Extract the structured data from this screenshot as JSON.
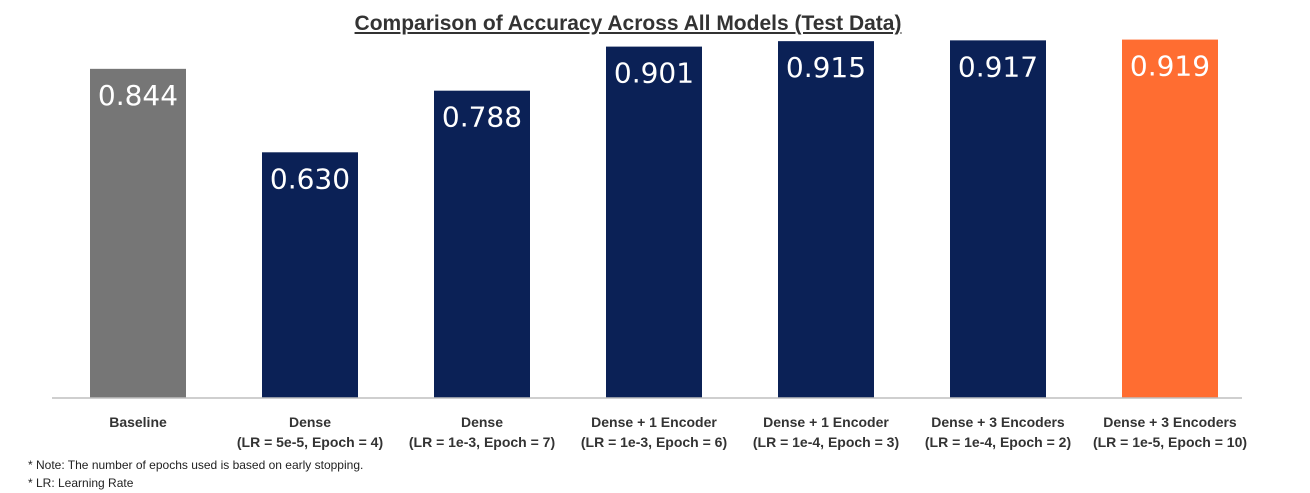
{
  "chart_data": {
    "type": "bar",
    "title": "Comparison of Accuracy Across All Models (Test Data)",
    "xlabel": "",
    "ylabel": "",
    "ylim": [
      0,
      1
    ],
    "grid": false,
    "legend": "none",
    "categories": [
      [
        "Baseline"
      ],
      [
        "Dense",
        "(LR = 5e-5, Epoch = 4)"
      ],
      [
        "Dense",
        "(LR = 1e-3, Epoch = 7)"
      ],
      [
        "Dense + 1 Encoder",
        "(LR = 1e-3, Epoch = 6)"
      ],
      [
        "Dense + 1 Encoder",
        "(LR = 1e-4, Epoch = 3)"
      ],
      [
        "Dense + 3 Encoders",
        "(LR = 1e-4, Epoch = 2)"
      ],
      [
        "Dense + 3 Encoders",
        "(LR = 1e-5, Epoch = 10)"
      ]
    ],
    "values": [
      0.844,
      0.63,
      0.788,
      0.901,
      0.915,
      0.917,
      0.919
    ],
    "data_labels": [
      "0.844",
      "0.630",
      "0.788",
      "0.901",
      "0.915",
      "0.917",
      "0.919"
    ],
    "bar_colors": [
      "#767676",
      "#0b2156",
      "#0b2156",
      "#0b2156",
      "#0b2156",
      "#0b2156",
      "#ff6d31"
    ]
  },
  "notes": [
    "* Note: The number of epochs used is based on early stopping.",
    "* LR: Learning Rate"
  ]
}
